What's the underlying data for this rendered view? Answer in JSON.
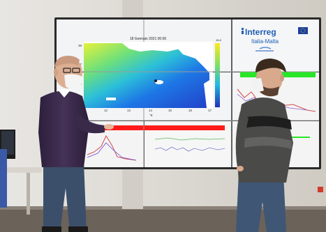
{
  "screen": {
    "map_title": "18 Gennaio 2021 00:00",
    "colorbar_top": "16.8",
    "lat_ticks": [
      "38",
      "37",
      "36",
      "35"
    ],
    "lon_ticks": [
      "12",
      "13",
      "14",
      "15",
      "16",
      "17"
    ],
    "lon_unit": "°E",
    "logo_text": "Interreg",
    "logo_subtext": "Italia-Malta"
  },
  "colors": {
    "wall": "#d9d6d0",
    "floor": "#6b625a",
    "bezel": "#2a2a2a",
    "red_bar": "#ff1a1a",
    "green_bar": "#28e628",
    "logo_blue": "#1d5fb3",
    "eu_blue": "#1a3fa0",
    "sweater": "#3b2a4a",
    "jeans": "#3c4f6a"
  }
}
